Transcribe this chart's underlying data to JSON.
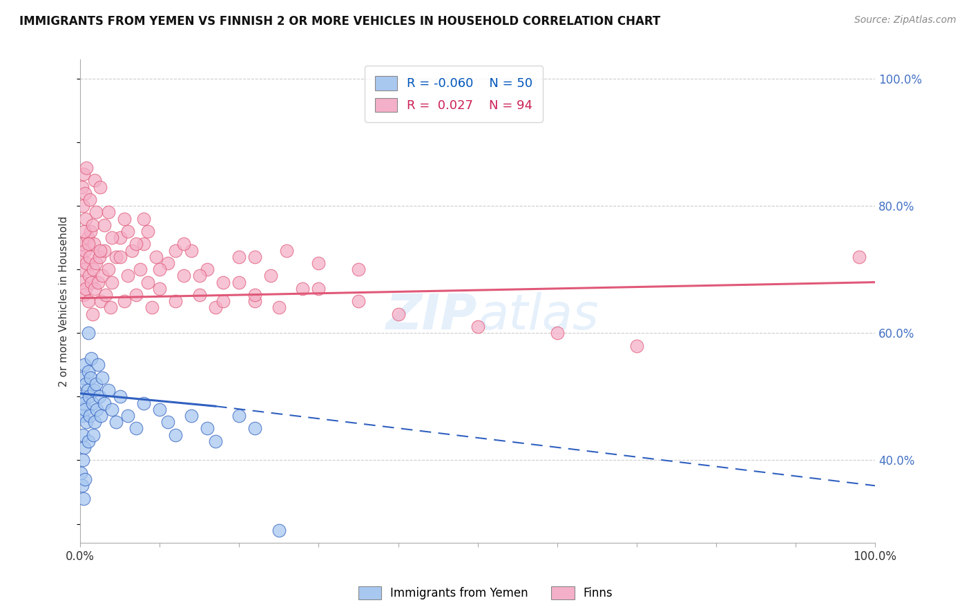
{
  "title": "IMMIGRANTS FROM YEMEN VS FINNISH 2 OR MORE VEHICLES IN HOUSEHOLD CORRELATION CHART",
  "source_text": "Source: ZipAtlas.com",
  "ylabel": "2 or more Vehicles in Household",
  "xlim": [
    0.0,
    100.0
  ],
  "ylim": [
    27.0,
    103.0
  ],
  "ytick_values": [
    40.0,
    60.0,
    80.0,
    100.0
  ],
  "color_blue": "#a8c8f0",
  "color_pink": "#f4b0c8",
  "line_color_blue": "#3060c0",
  "line_color_pink": "#e05878",
  "blue_x": [
    0.1,
    0.2,
    0.3,
    0.3,
    0.4,
    0.5,
    0.5,
    0.6,
    0.7,
    0.8,
    0.9,
    1.0,
    1.0,
    1.1,
    1.2,
    1.3,
    1.4,
    1.5,
    1.6,
    1.7,
    1.8,
    2.0,
    2.1,
    2.2,
    2.4,
    2.6,
    2.8,
    3.0,
    3.5,
    4.0,
    4.5,
    5.0,
    6.0,
    7.0,
    8.0,
    10.0,
    11.0,
    12.0,
    14.0,
    16.0,
    17.0,
    20.0,
    22.0,
    25.0,
    0.1,
    0.2,
    0.3,
    0.4,
    0.6,
    1.0
  ],
  "blue_y": [
    50.0,
    47.0,
    53.0,
    44.0,
    49.0,
    55.0,
    42.0,
    48.0,
    52.0,
    46.0,
    51.0,
    54.0,
    43.0,
    50.0,
    47.0,
    53.0,
    56.0,
    49.0,
    44.0,
    51.0,
    46.0,
    52.0,
    48.0,
    55.0,
    50.0,
    47.0,
    53.0,
    49.0,
    51.0,
    48.0,
    46.0,
    50.0,
    47.0,
    45.0,
    49.0,
    48.0,
    46.0,
    44.0,
    47.0,
    45.0,
    43.0,
    47.0,
    45.0,
    29.0,
    38.0,
    36.0,
    40.0,
    34.0,
    37.0,
    60.0
  ],
  "pink_x": [
    0.1,
    0.2,
    0.3,
    0.4,
    0.5,
    0.6,
    0.7,
    0.8,
    0.9,
    1.0,
    1.1,
    1.2,
    1.3,
    1.4,
    1.5,
    1.6,
    1.7,
    1.8,
    2.0,
    2.2,
    2.4,
    2.6,
    2.8,
    3.0,
    3.2,
    3.5,
    3.8,
    4.0,
    4.5,
    5.0,
    5.5,
    6.0,
    6.5,
    7.0,
    7.5,
    8.0,
    8.5,
    9.0,
    9.5,
    10.0,
    11.0,
    12.0,
    13.0,
    14.0,
    15.0,
    16.0,
    17.0,
    18.0,
    20.0,
    22.0,
    24.0,
    26.0,
    28.0,
    30.0,
    0.3,
    0.5,
    0.7,
    1.0,
    1.5,
    2.0,
    2.5,
    3.0,
    4.0,
    5.0,
    6.0,
    7.0,
    8.0,
    10.0,
    12.0,
    15.0,
    18.0,
    20.0,
    22.0,
    25.0,
    30.0,
    35.0,
    40.0,
    50.0,
    60.0,
    70.0,
    0.2,
    0.4,
    0.6,
    0.8,
    1.2,
    1.8,
    2.5,
    3.5,
    5.5,
    8.5,
    13.0,
    22.0,
    35.0,
    98.0
  ],
  "pink_y": [
    72.0,
    68.0,
    74.0,
    66.0,
    70.0,
    73.0,
    67.0,
    71.0,
    75.0,
    65.0,
    69.0,
    72.0,
    76.0,
    68.0,
    63.0,
    70.0,
    74.0,
    67.0,
    71.0,
    68.0,
    72.0,
    65.0,
    69.0,
    73.0,
    66.0,
    70.0,
    64.0,
    68.0,
    72.0,
    75.0,
    65.0,
    69.0,
    73.0,
    66.0,
    70.0,
    74.0,
    68.0,
    64.0,
    72.0,
    67.0,
    71.0,
    65.0,
    69.0,
    73.0,
    66.0,
    70.0,
    64.0,
    68.0,
    72.0,
    65.0,
    69.0,
    73.0,
    67.0,
    71.0,
    80.0,
    76.0,
    78.0,
    74.0,
    77.0,
    79.0,
    73.0,
    77.0,
    75.0,
    72.0,
    76.0,
    74.0,
    78.0,
    70.0,
    73.0,
    69.0,
    65.0,
    68.0,
    66.0,
    64.0,
    67.0,
    65.0,
    63.0,
    61.0,
    60.0,
    58.0,
    83.0,
    85.0,
    82.0,
    86.0,
    81.0,
    84.0,
    83.0,
    79.0,
    78.0,
    76.0,
    74.0,
    72.0,
    70.0,
    72.0
  ],
  "blue_line_x0": 0.0,
  "blue_line_x_solid_end": 17.0,
  "blue_line_y_start": 50.5,
  "blue_line_y_end_solid": 48.5,
  "blue_line_y_end": 36.0,
  "pink_line_y_start": 65.5,
  "pink_line_y_end": 68.0
}
